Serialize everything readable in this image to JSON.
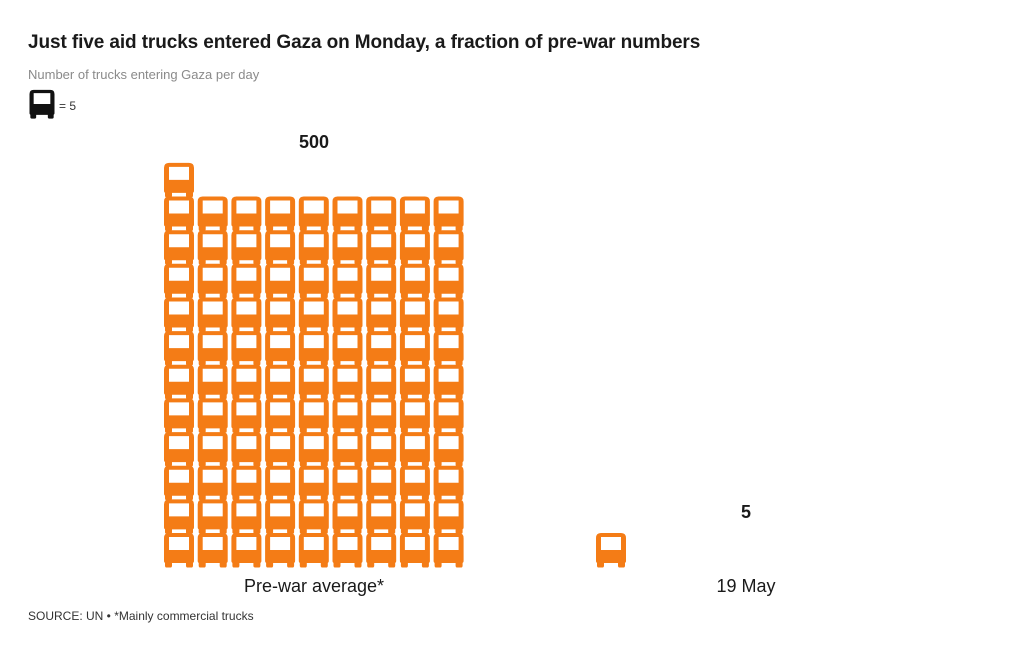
{
  "header": {
    "title": "Just five aid trucks entered Gaza on Monday, a fraction of pre-war numbers",
    "subtitle": "Number of trucks entering Gaza per day"
  },
  "legend": {
    "icon": "truck-icon",
    "label": "= 5",
    "units_per_icon": 5
  },
  "colors": {
    "truck": "#f47c16",
    "legend_truck": "#111111"
  },
  "chart_data": {
    "type": "pictogram",
    "title": "Just five aid trucks entered Gaza on Monday, a fraction of pre-war numbers",
    "subtitle": "Number of trucks entering Gaza per day",
    "categories": [
      "Pre-war average*",
      "19 May"
    ],
    "values": [
      500,
      5
    ],
    "value_labels": [
      "500",
      "5"
    ],
    "unit_per_icon": 5,
    "icons_per_row": 9
  },
  "footer": {
    "source": "SOURCE: UN • *Mainly commercial trucks"
  }
}
